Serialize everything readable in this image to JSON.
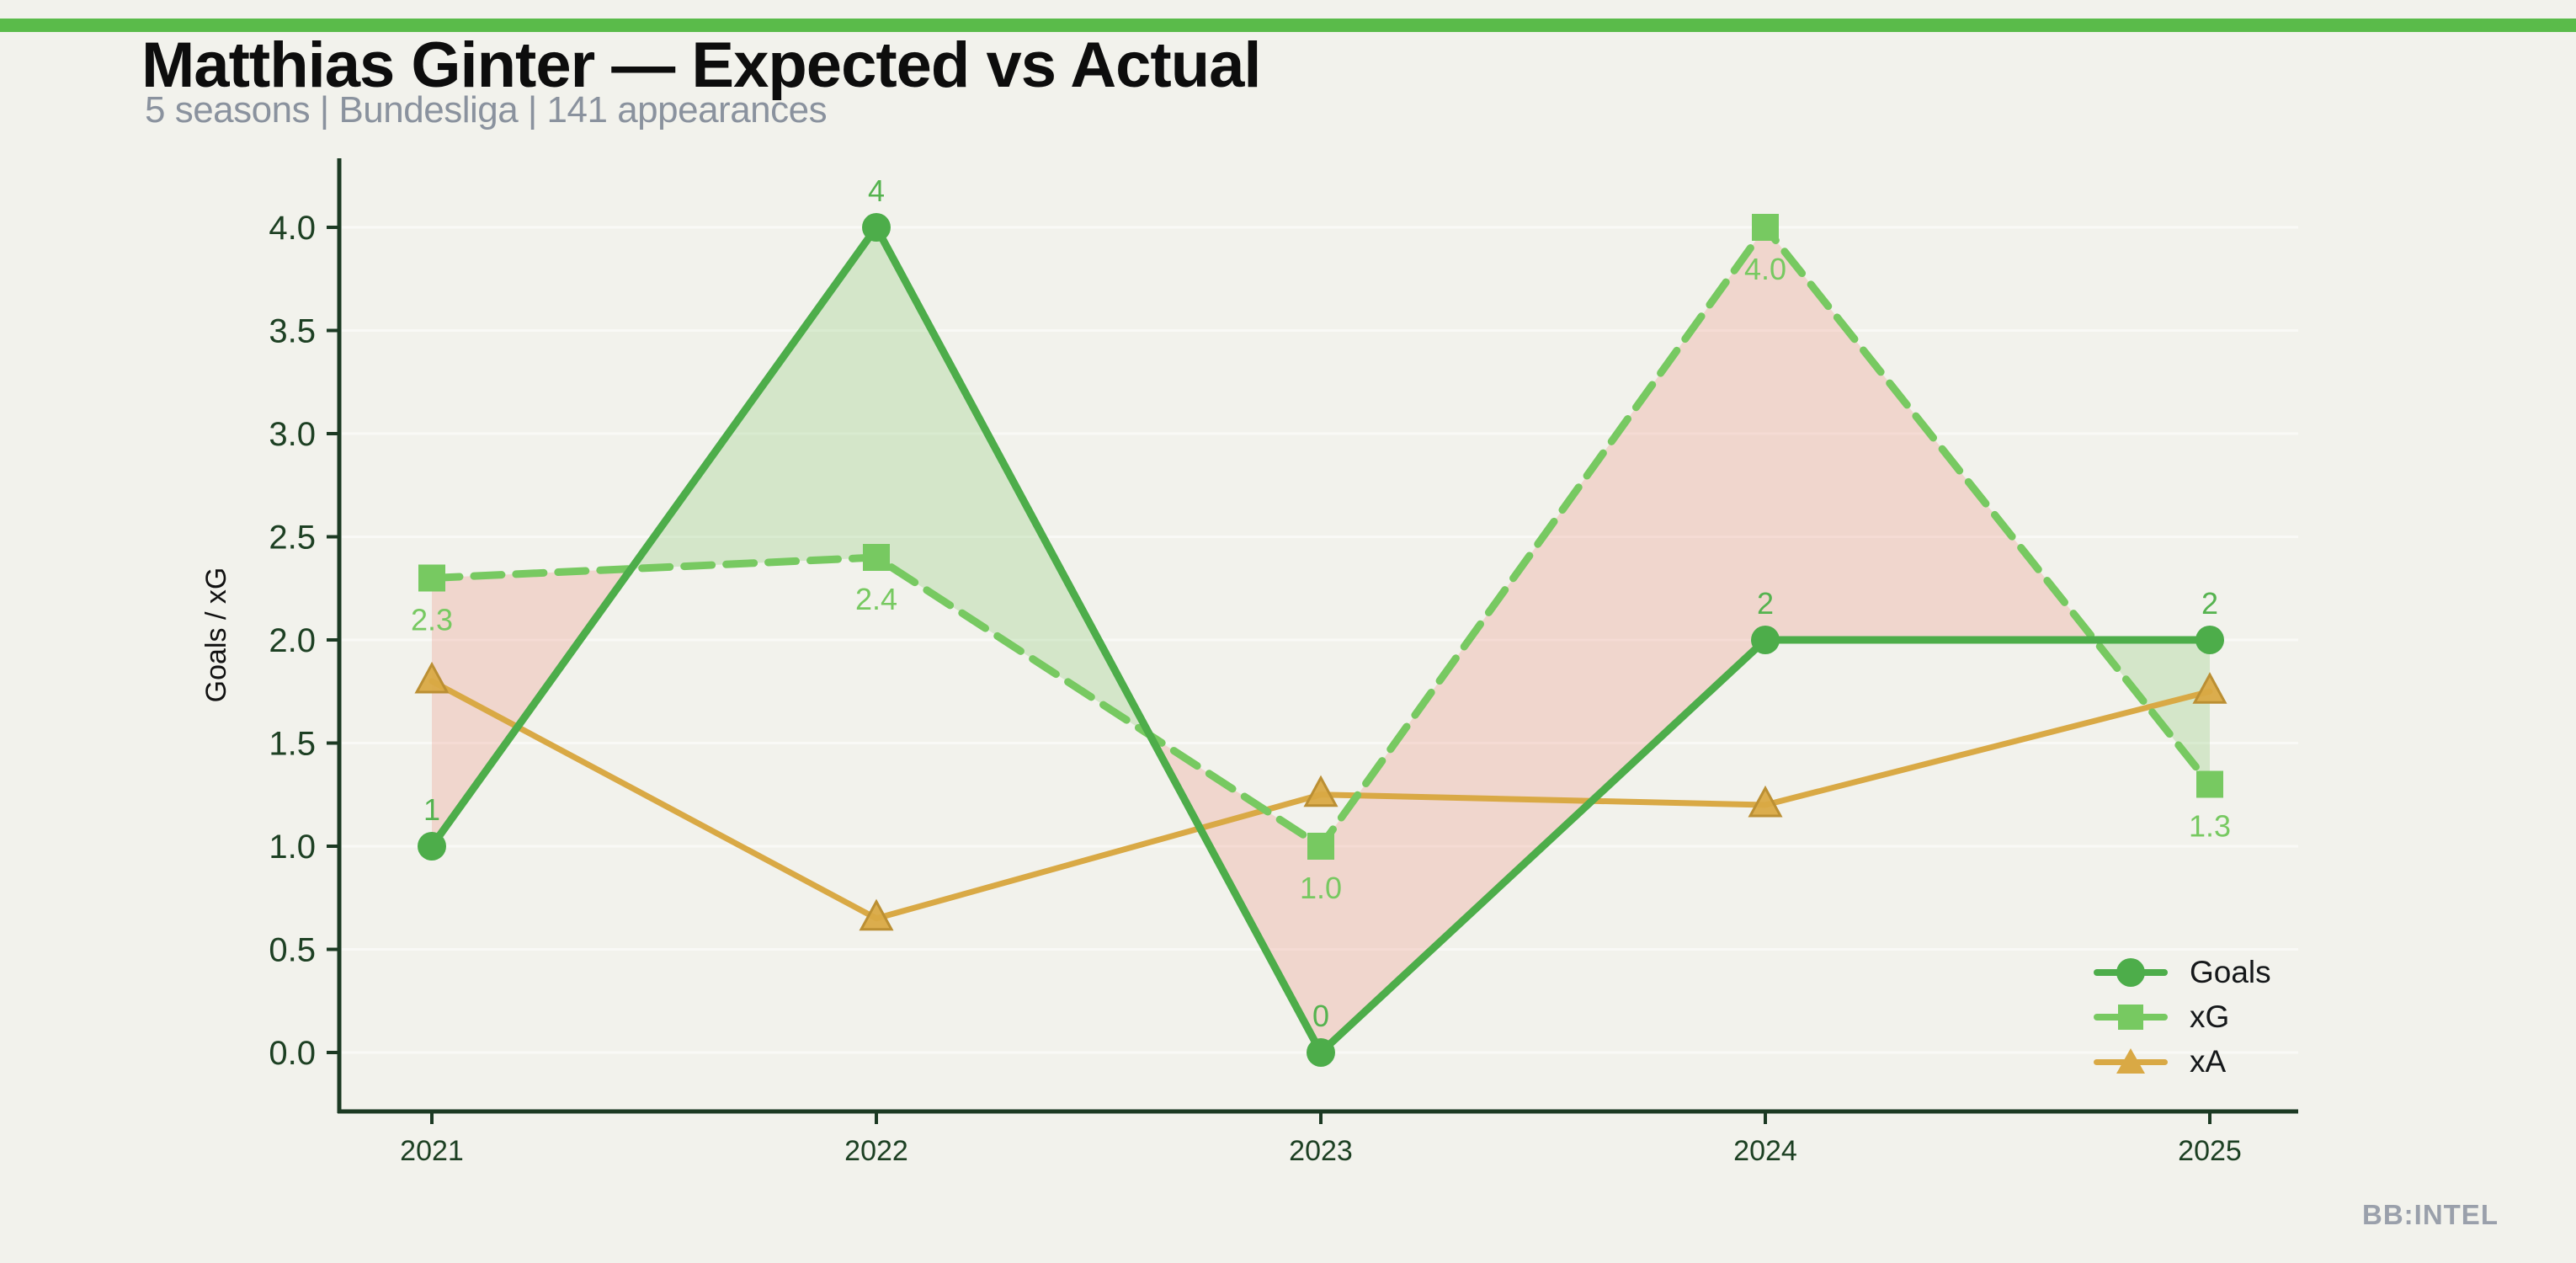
{
  "header": {
    "title": "Matthias Ginter — Expected vs Actual",
    "subtitle": "5 seasons | Bundesliga | 141 appearances"
  },
  "watermark": "BB:INTEL",
  "colors": {
    "background": "#f2f2ec",
    "top_bar": "#5abb4a",
    "title_text": "#0d0d0d",
    "subtitle_text": "#8a929e",
    "axis": "#1c3a23",
    "tick_label": "#1d4023",
    "goals": "#4dad4a",
    "goals_label": "#55b34f",
    "xg": "#77c961",
    "xa": "#d9a945",
    "xa_edge": "#bb8f33",
    "fill_xg_over_goals": "#ec9a8d",
    "fill_goals_over_xg": "#7cc45e",
    "gridline": "#ffffff",
    "watermark_text": "#9aa0ab"
  },
  "chart_data": {
    "type": "line",
    "title": "Matthias Ginter — Expected vs Actual",
    "subtitle": "5 seasons | Bundesliga | 141 appearances",
    "x": [
      2021,
      2022,
      2023,
      2024,
      2025
    ],
    "series": [
      {
        "name": "Goals",
        "marker": "circle",
        "style": "solid",
        "values": [
          1,
          4,
          0,
          2,
          2
        ],
        "point_labels": [
          "1",
          "4",
          "0",
          "2",
          "2"
        ]
      },
      {
        "name": "xG",
        "marker": "square",
        "style": "dashed",
        "values": [
          2.3,
          2.4,
          1.0,
          4.0,
          1.3
        ],
        "point_labels": [
          "2.3",
          "2.4",
          "1.0",
          "4.0",
          "1.3"
        ]
      },
      {
        "name": "xA",
        "marker": "triangle",
        "style": "solid",
        "values": [
          1.8,
          0.65,
          1.25,
          1.2,
          1.75
        ],
        "point_labels": []
      }
    ],
    "xlabel": "",
    "ylabel": "Goals / xG",
    "ylim": [
      0,
      4.0
    ],
    "yticks": [
      0.0,
      0.5,
      1.0,
      1.5,
      2.0,
      2.5,
      3.0,
      3.5,
      4.0
    ],
    "grid": true,
    "legend_position": "lower right",
    "fills": "shaded band between Goals and xG: red where xG > Goals, green where Goals > xG"
  },
  "legend": {
    "items": [
      {
        "label": "Goals"
      },
      {
        "label": "xG"
      },
      {
        "label": "xA"
      }
    ]
  }
}
